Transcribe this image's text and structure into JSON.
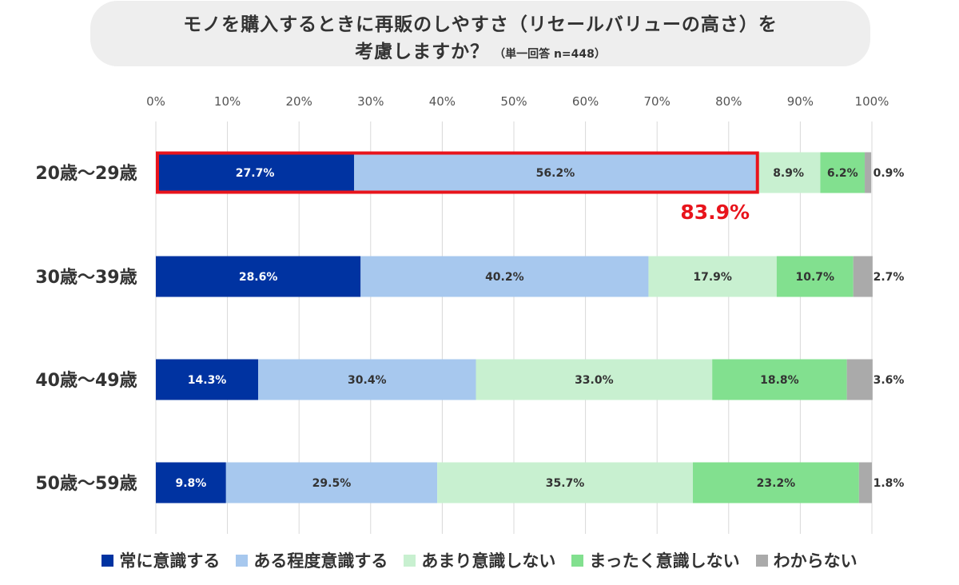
{
  "title": {
    "line1": "モノを購入するときに再販のしやすさ（リセールバリューの高さ）を",
    "line2": "考慮しますか？",
    "note": "（単一回答 n=448）"
  },
  "chart_data": {
    "type": "bar",
    "orientation": "horizontal",
    "stacked": true,
    "xlim": [
      0,
      100
    ],
    "x_ticks": [
      "0%",
      "10%",
      "20%",
      "30%",
      "40%",
      "50%",
      "60%",
      "70%",
      "80%",
      "90%",
      "100%"
    ],
    "grid": true,
    "legend_position": "bottom",
    "categories": [
      "20歳〜29歳",
      "30歳〜39歳",
      "40歳〜49歳",
      "50歳〜59歳"
    ],
    "series": [
      {
        "name": "常に意識する",
        "color": "#0033a1",
        "values": [
          27.7,
          28.6,
          14.3,
          9.8
        ],
        "labels": [
          "27.7%",
          "28.6%",
          "14.3%",
          "9.8%"
        ]
      },
      {
        "name": "ある程度意識する",
        "color": "#a7c8ee",
        "values": [
          56.2,
          40.2,
          30.4,
          29.5
        ],
        "labels": [
          "56.2%",
          "40.2%",
          "30.4%",
          "29.5%"
        ]
      },
      {
        "name": "あまり意識しない",
        "color": "#c8f0d0",
        "values": [
          8.9,
          17.9,
          33.0,
          35.7
        ],
        "labels": [
          "8.9%",
          "17.9%",
          "33.0%",
          "35.7%"
        ]
      },
      {
        "name": "まったく意識しない",
        "color": "#82e08f",
        "values": [
          6.2,
          10.7,
          18.8,
          23.2
        ],
        "labels": [
          "6.2%",
          "10.7%",
          "18.8%",
          "23.2%"
        ]
      },
      {
        "name": "わからない",
        "color": "#aaaaaa",
        "values": [
          0.9,
          2.7,
          3.6,
          1.8
        ],
        "labels": [
          "0.9%",
          "2.7%",
          "3.6%",
          "1.8%"
        ]
      }
    ],
    "annotation": {
      "text": "83.9%",
      "color": "#e8141c",
      "row": 0,
      "series_span": [
        0,
        1
      ]
    }
  }
}
